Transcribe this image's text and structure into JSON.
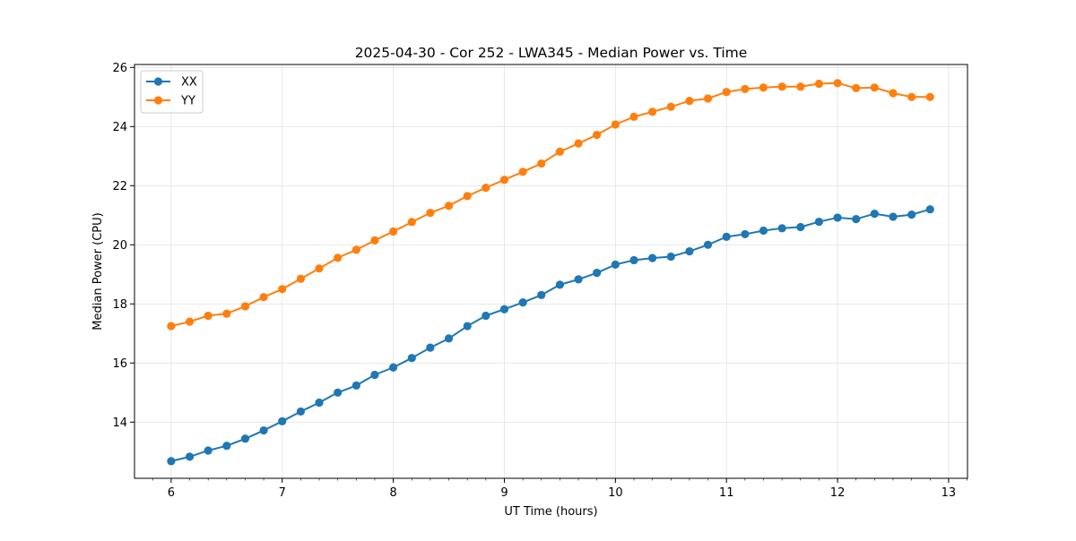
{
  "chart_data": {
    "type": "line",
    "title": "2025-04-30 - Cor 252 - LWA345 - Median Power vs. Time",
    "xlabel": "UT Time (hours)",
    "ylabel": "Median Power (CPU)",
    "xlim": [
      5.67,
      13.17
    ],
    "ylim": [
      12.1,
      26.1
    ],
    "xticks": [
      6,
      7,
      8,
      9,
      10,
      11,
      12,
      13
    ],
    "yticks": [
      14,
      16,
      18,
      20,
      22,
      24,
      26
    ],
    "grid": true,
    "legend_position": "upper-left",
    "x": [
      6.0,
      6.167,
      6.333,
      6.5,
      6.667,
      6.833,
      7.0,
      7.167,
      7.333,
      7.5,
      7.667,
      7.833,
      8.0,
      8.167,
      8.333,
      8.5,
      8.667,
      8.833,
      9.0,
      9.167,
      9.333,
      9.5,
      9.667,
      9.833,
      10.0,
      10.167,
      10.333,
      10.5,
      10.667,
      10.833,
      11.0,
      11.167,
      11.333,
      11.5,
      11.667,
      11.833,
      12.0,
      12.167,
      12.333,
      12.5,
      12.667,
      12.833
    ],
    "series": [
      {
        "name": "XX",
        "color": "#1f77b4",
        "values": [
          12.68,
          12.83,
          13.04,
          13.2,
          13.44,
          13.72,
          14.03,
          14.36,
          14.66,
          15.0,
          15.24,
          15.6,
          15.85,
          16.17,
          16.52,
          16.83,
          17.25,
          17.6,
          17.82,
          18.05,
          18.3,
          18.65,
          18.83,
          19.05,
          19.33,
          19.48,
          19.55,
          19.6,
          19.78,
          20.0,
          20.27,
          20.36,
          20.48,
          20.56,
          20.6,
          20.78,
          20.92,
          20.87,
          21.05,
          20.95,
          21.02,
          21.2
        ]
      },
      {
        "name": "YY",
        "color": "#ff7f0e",
        "values": [
          17.25,
          17.4,
          17.6,
          17.67,
          17.92,
          18.23,
          18.5,
          18.85,
          19.2,
          19.56,
          19.83,
          20.15,
          20.45,
          20.77,
          21.08,
          21.32,
          21.65,
          21.93,
          22.2,
          22.47,
          22.75,
          23.15,
          23.43,
          23.72,
          24.07,
          24.33,
          24.5,
          24.67,
          24.87,
          24.95,
          25.17,
          25.27,
          25.32,
          25.35,
          25.35,
          25.45,
          25.47,
          25.3,
          25.32,
          25.13,
          25.0,
          25.0
        ]
      }
    ]
  }
}
